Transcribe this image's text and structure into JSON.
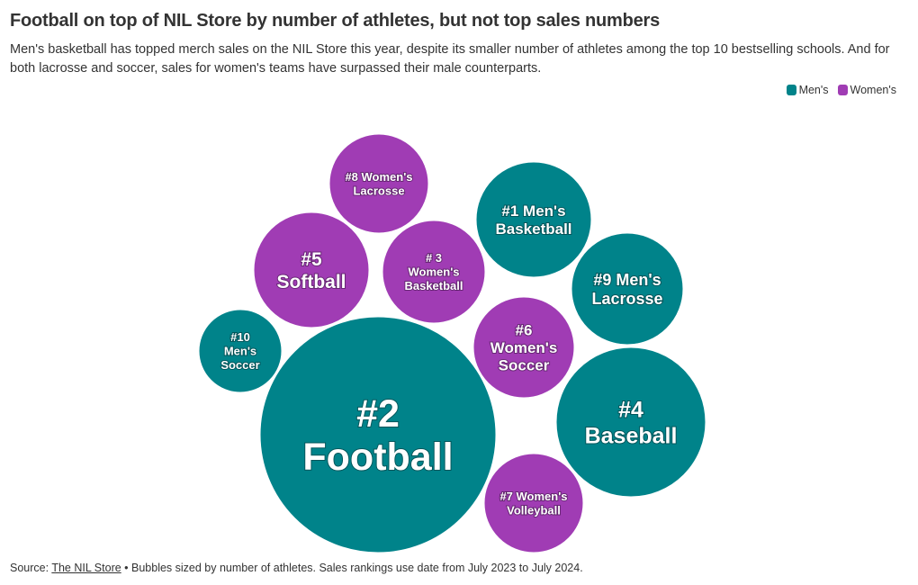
{
  "title": "Football on top of NIL Store by number of athletes, but not top sales numbers",
  "subtitle": "Men's basketball has topped merch sales on the NIL Store this year, despite its smaller number of athletes among the top 10 bestselling schools. And for both lacrosse and soccer, sales for women's teams have surpassed their male counterparts.",
  "legend": [
    {
      "label": "Men's",
      "color": "#00838a"
    },
    {
      "label": "Women's",
      "color": "#a03cb4"
    }
  ],
  "footer": {
    "prefix": "Source: ",
    "link_text": "The NIL Store",
    "suffix": " • Bubbles sized by number of athletes. Sales rankings use date from July 2023 to July 2024."
  },
  "chart_data": {
    "type": "bubble",
    "size_by": "number of athletes",
    "series": [
      {
        "name": "Men's",
        "color": "#00838a"
      },
      {
        "name": "Women's",
        "color": "#a03cb4"
      }
    ],
    "bubbles": [
      {
        "rank": 1,
        "lines": [
          "#1 Men's",
          "Basketball"
        ],
        "series": "Men's",
        "relative_size": 0.24
      },
      {
        "rank": 2,
        "lines": [
          "#2",
          "Football"
        ],
        "series": "Men's",
        "relative_size": 1.0
      },
      {
        "rank": 3,
        "lines": [
          "# 3",
          "Women's",
          "Basketball"
        ],
        "series": "Women's",
        "relative_size": 0.19
      },
      {
        "rank": 4,
        "lines": [
          "#4",
          "Baseball"
        ],
        "series": "Men's",
        "relative_size": 0.4
      },
      {
        "rank": 5,
        "lines": [
          "#5",
          "Softball"
        ],
        "series": "Women's",
        "relative_size": 0.24
      },
      {
        "rank": 6,
        "lines": [
          "#6",
          "Women's",
          "Soccer"
        ],
        "series": "Women's",
        "relative_size": 0.18
      },
      {
        "rank": 7,
        "lines": [
          "#7 Women's",
          "Volleyball"
        ],
        "series": "Women's",
        "relative_size": 0.18
      },
      {
        "rank": 8,
        "lines": [
          "#8 Women's",
          "Lacrosse"
        ],
        "series": "Women's",
        "relative_size": 0.18
      },
      {
        "rank": 9,
        "lines": [
          "#9 Men's",
          "Lacrosse"
        ],
        "series": "Men's",
        "relative_size": 0.23
      },
      {
        "rank": 10,
        "lines": [
          "#10",
          "Men's",
          "Soccer"
        ],
        "series": "Men's",
        "relative_size": 0.12
      }
    ]
  }
}
